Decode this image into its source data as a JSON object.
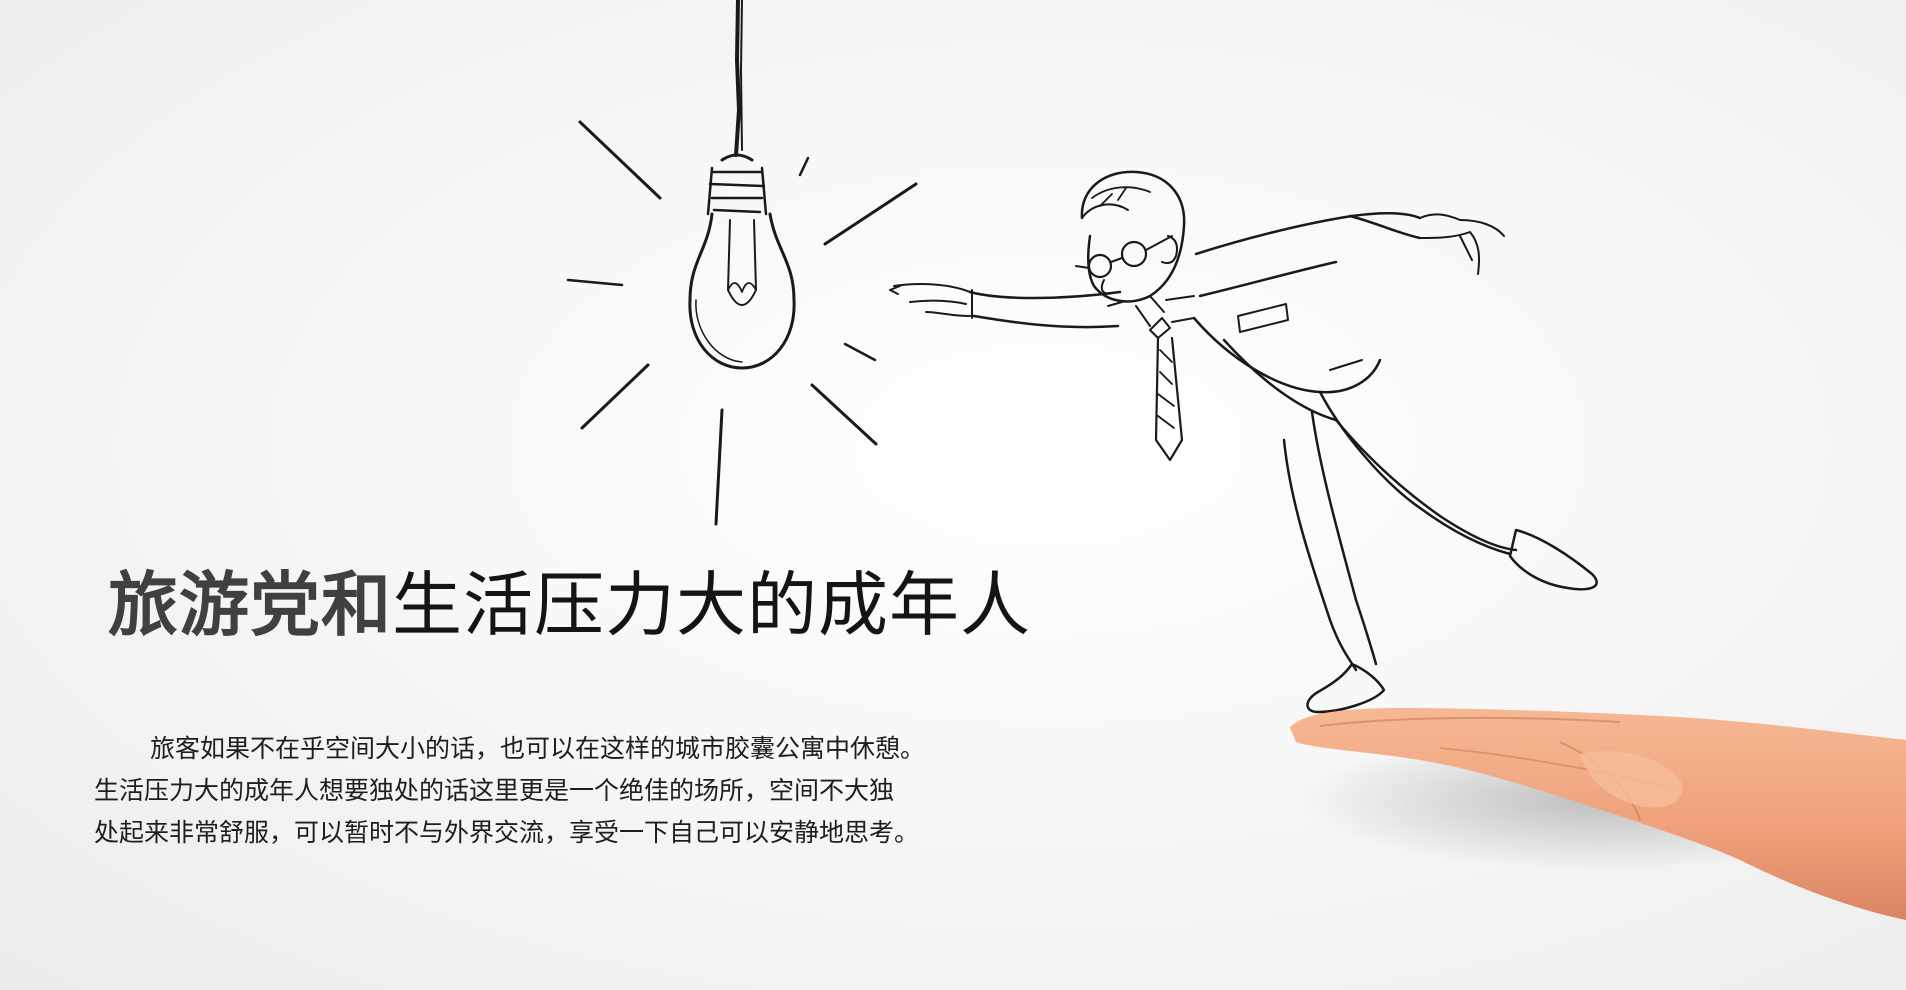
{
  "slide": {
    "title_bold": "旅游党和",
    "title_regular": "生活压力大的成年人",
    "paragraph_lines": [
      "旅客如果不在乎空间大小的话，也可以在这样的城市胶囊公寓中休憩。",
      "生活压力大的成年人想要独处的话这里更是一个绝佳的场所，空间不大独",
      "处起来非常舒服，可以暂时不与外界交流，享受一下自己可以安静地思考。"
    ]
  },
  "illustration": {
    "elements": [
      "light-bulb-sketch",
      "businessman-sketch",
      "open-hand-photo"
    ],
    "colors": {
      "sketch_ink": "#1a1a1a",
      "skin": "#f2a781",
      "background": "#f4f4f4"
    }
  }
}
